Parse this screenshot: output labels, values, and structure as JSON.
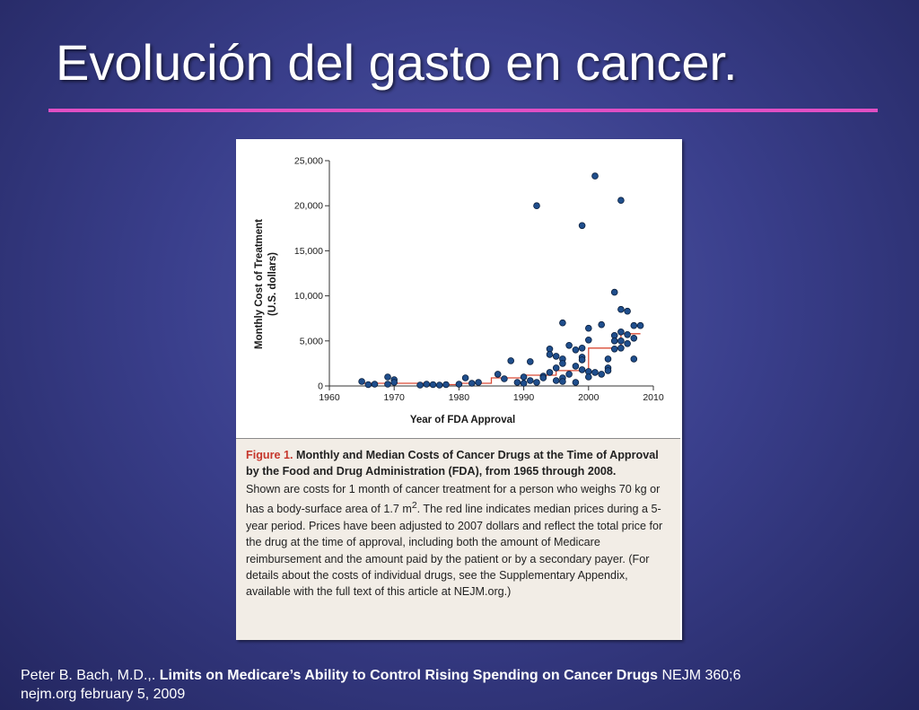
{
  "slide": {
    "title": "Evolución del gasto en cancer.",
    "accent_color": "#e04fc4",
    "background_color": "#3a3f8c"
  },
  "chart_data": {
    "type": "scatter",
    "ylabel_line1": "Monthly Cost of Treatment",
    "ylabel_line2": "(U.S. dollars)",
    "xlabel": "Year of FDA Approval",
    "xlim": [
      1960,
      2010
    ],
    "ylim": [
      0,
      25000
    ],
    "x_ticks": [
      1960,
      1970,
      1980,
      1990,
      2000,
      2010
    ],
    "x_tick_labels": [
      "1960",
      "1970",
      "1980",
      "1990",
      "2000",
      "2010"
    ],
    "y_ticks": [
      0,
      5000,
      10000,
      15000,
      20000,
      25000
    ],
    "y_tick_labels": [
      "0",
      "5,000",
      "10,000",
      "15,000",
      "20,000",
      "25,000"
    ],
    "grid": false,
    "series": [
      {
        "kind": "points",
        "color": "#1f4e8c",
        "x": [
          1965,
          1966,
          1967,
          1969,
          1969,
          1970,
          1970,
          1974,
          1975,
          1976,
          1977,
          1978,
          1980,
          1981,
          1982,
          1983,
          1986,
          1987,
          1988,
          1989,
          1990,
          1990,
          1991,
          1991,
          1992,
          1992,
          1993,
          1993,
          1994,
          1994,
          1994,
          1995,
          1995,
          1995,
          1996,
          1996,
          1996,
          1996,
          1996,
          1997,
          1997,
          1998,
          1998,
          1998,
          1999,
          1999,
          1999,
          1999,
          1999,
          2000,
          2000,
          2000,
          2000,
          2001,
          2001,
          2002,
          2002,
          2003,
          2003,
          2003,
          2004,
          2004,
          2004,
          2004,
          2005,
          2005,
          2005,
          2005,
          2005,
          2006,
          2006,
          2006,
          2007,
          2007,
          2007,
          2008
        ],
        "y": [
          500,
          150,
          200,
          1000,
          200,
          700,
          400,
          100,
          200,
          150,
          100,
          150,
          200,
          900,
          300,
          400,
          1300,
          800,
          2800,
          400,
          1000,
          300,
          2700,
          600,
          20000,
          400,
          1100,
          900,
          4100,
          3500,
          1500,
          3300,
          2000,
          600,
          7000,
          3000,
          2500,
          900,
          500,
          4500,
          1300,
          4000,
          2200,
          400,
          17800,
          4200,
          3200,
          2900,
          1800,
          6400,
          5100,
          1600,
          1000,
          23300,
          1500,
          6800,
          1300,
          3000,
          2000,
          1700,
          10400,
          5600,
          5000,
          4100,
          20600,
          8500,
          6000,
          5000,
          4200,
          8300,
          5700,
          4700,
          6700,
          5300,
          3000,
          6700
        ]
      },
      {
        "kind": "median-step",
        "color": "#d94b36",
        "x": [
          1965,
          1975,
          1975,
          1980,
          1980,
          1985,
          1985,
          1990,
          1990,
          1995,
          1995,
          2000,
          2000,
          2005,
          2005,
          2008
        ],
        "y": [
          300,
          300,
          150,
          150,
          300,
          300,
          900,
          900,
          1200,
          1200,
          1700,
          1700,
          4200,
          4200,
          5800,
          5800
        ]
      }
    ]
  },
  "caption": {
    "figure_label": "Figure 1.",
    "heading": " Monthly and Median Costs of Cancer Drugs at the Time of Approval by the Food and Drug Administration (FDA), from 1965 through 2008.",
    "body_part1": "Shown are costs for 1 month of cancer treatment for a person who weighs 70 kg or has a body-surface area of 1.7 m",
    "body_sup": "2",
    "body_part2": ". The red line indicates median prices during a 5-year period. Prices have been adjusted to 2007 dollars and reflect the total price for the drug at the time of approval, including both the amount of Medicare reimbursement and the amount paid by the patient or by a secondary payer. (For details about the costs of individual drugs, see the Supplementary Appendix, available with the full text of this article at NEJM.org.)"
  },
  "citation": {
    "author": "Peter B. Bach, M.D.,. ",
    "article_title": "Limits on Medicare’s Ability to Control Rising Spending on Cancer Drugs",
    "journal": " NEJM 360;6",
    "line2": "nejm.org february 5, 2009"
  }
}
